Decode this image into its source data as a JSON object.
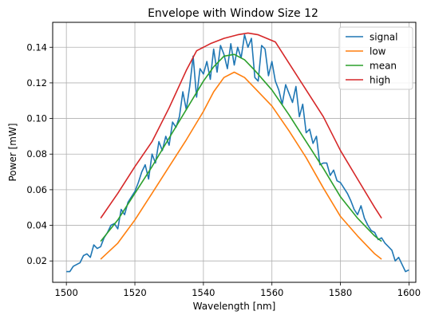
{
  "chart_data": {
    "type": "line",
    "title": "Envelope with Window Size 12",
    "xlabel": "Wavelength [nm]",
    "ylabel": "Power [mW]",
    "xlim": [
      1496,
      1602
    ],
    "ylim": [
      0.008,
      0.154
    ],
    "xticks": [
      1500,
      1520,
      1540,
      1560,
      1580,
      1600
    ],
    "yticks": [
      0.02,
      0.04,
      0.06,
      0.08,
      0.1,
      0.12,
      0.14
    ],
    "ytick_labels": [
      "0.02",
      "0.04",
      "0.06",
      "0.08",
      "0.10",
      "0.12",
      "0.14"
    ],
    "grid": true,
    "legend_position": "top-right",
    "series": [
      {
        "name": "signal",
        "color": "#1f77b4",
        "x": [
          1500,
          1501,
          1502,
          1503,
          1504,
          1505,
          1506,
          1507,
          1508,
          1509,
          1510,
          1511,
          1512,
          1513,
          1514,
          1515,
          1516,
          1517,
          1518,
          1519,
          1520,
          1521,
          1522,
          1523,
          1524,
          1525,
          1526,
          1527,
          1528,
          1529,
          1530,
          1531,
          1532,
          1533,
          1534,
          1535,
          1536,
          1537,
          1538,
          1539,
          1540,
          1541,
          1542,
          1543,
          1544,
          1545,
          1546,
          1547,
          1548,
          1549,
          1550,
          1551,
          1552,
          1553,
          1554,
          1555,
          1556,
          1557,
          1558,
          1559,
          1560,
          1561,
          1562,
          1563,
          1564,
          1565,
          1566,
          1567,
          1568,
          1569,
          1570,
          1571,
          1572,
          1573,
          1574,
          1575,
          1576,
          1577,
          1578,
          1579,
          1580,
          1581,
          1582,
          1583,
          1584,
          1585,
          1586,
          1587,
          1588,
          1589,
          1590,
          1591,
          1592,
          1593,
          1594,
          1595,
          1596,
          1597,
          1598,
          1599,
          1600
        ],
        "values": [
          0.014,
          0.014,
          0.017,
          0.018,
          0.019,
          0.023,
          0.024,
          0.022,
          0.029,
          0.027,
          0.028,
          0.033,
          0.036,
          0.04,
          0.041,
          0.038,
          0.049,
          0.046,
          0.053,
          0.056,
          0.059,
          0.064,
          0.07,
          0.074,
          0.066,
          0.08,
          0.075,
          0.087,
          0.082,
          0.09,
          0.085,
          0.098,
          0.095,
          0.101,
          0.115,
          0.105,
          0.118,
          0.135,
          0.112,
          0.128,
          0.125,
          0.132,
          0.122,
          0.139,
          0.126,
          0.141,
          0.136,
          0.128,
          0.142,
          0.13,
          0.14,
          0.134,
          0.147,
          0.14,
          0.145,
          0.123,
          0.121,
          0.141,
          0.139,
          0.124,
          0.132,
          0.121,
          0.116,
          0.108,
          0.119,
          0.114,
          0.109,
          0.118,
          0.101,
          0.108,
          0.092,
          0.094,
          0.086,
          0.09,
          0.074,
          0.075,
          0.075,
          0.068,
          0.071,
          0.065,
          0.064,
          0.061,
          0.058,
          0.054,
          0.049,
          0.046,
          0.051,
          0.044,
          0.04,
          0.037,
          0.036,
          0.032,
          0.033,
          0.03,
          0.028,
          0.026,
          0.02,
          0.022,
          0.018,
          0.014,
          0.015
        ]
      },
      {
        "name": "low",
        "color": "#ff7f0e",
        "x": [
          1510,
          1515,
          1520,
          1525,
          1530,
          1535,
          1540,
          1543,
          1546,
          1549,
          1552,
          1555,
          1560,
          1565,
          1570,
          1575,
          1580,
          1585,
          1590,
          1592
        ],
        "values": [
          0.021,
          0.03,
          0.043,
          0.058,
          0.073,
          0.088,
          0.104,
          0.115,
          0.123,
          0.126,
          0.123,
          0.117,
          0.107,
          0.093,
          0.078,
          0.061,
          0.045,
          0.034,
          0.024,
          0.021
        ]
      },
      {
        "name": "mean",
        "color": "#2ca02c",
        "x": [
          1510,
          1515,
          1520,
          1525,
          1530,
          1535,
          1540,
          1543,
          1546,
          1549,
          1552,
          1555,
          1560,
          1565,
          1570,
          1575,
          1580,
          1585,
          1590,
          1592
        ],
        "values": [
          0.031,
          0.043,
          0.058,
          0.073,
          0.089,
          0.105,
          0.121,
          0.129,
          0.135,
          0.136,
          0.133,
          0.127,
          0.116,
          0.102,
          0.087,
          0.072,
          0.056,
          0.044,
          0.034,
          0.031
        ]
      },
      {
        "name": "high",
        "color": "#d62728",
        "x": [
          1510,
          1515,
          1520,
          1525,
          1530,
          1535,
          1538,
          1542,
          1546,
          1550,
          1553,
          1556,
          1561,
          1565,
          1570,
          1575,
          1580,
          1585,
          1590,
          1592
        ],
        "values": [
          0.044,
          0.058,
          0.073,
          0.087,
          0.106,
          0.127,
          0.138,
          0.142,
          0.145,
          0.147,
          0.148,
          0.147,
          0.143,
          0.131,
          0.116,
          0.101,
          0.082,
          0.066,
          0.05,
          0.044
        ]
      }
    ]
  }
}
